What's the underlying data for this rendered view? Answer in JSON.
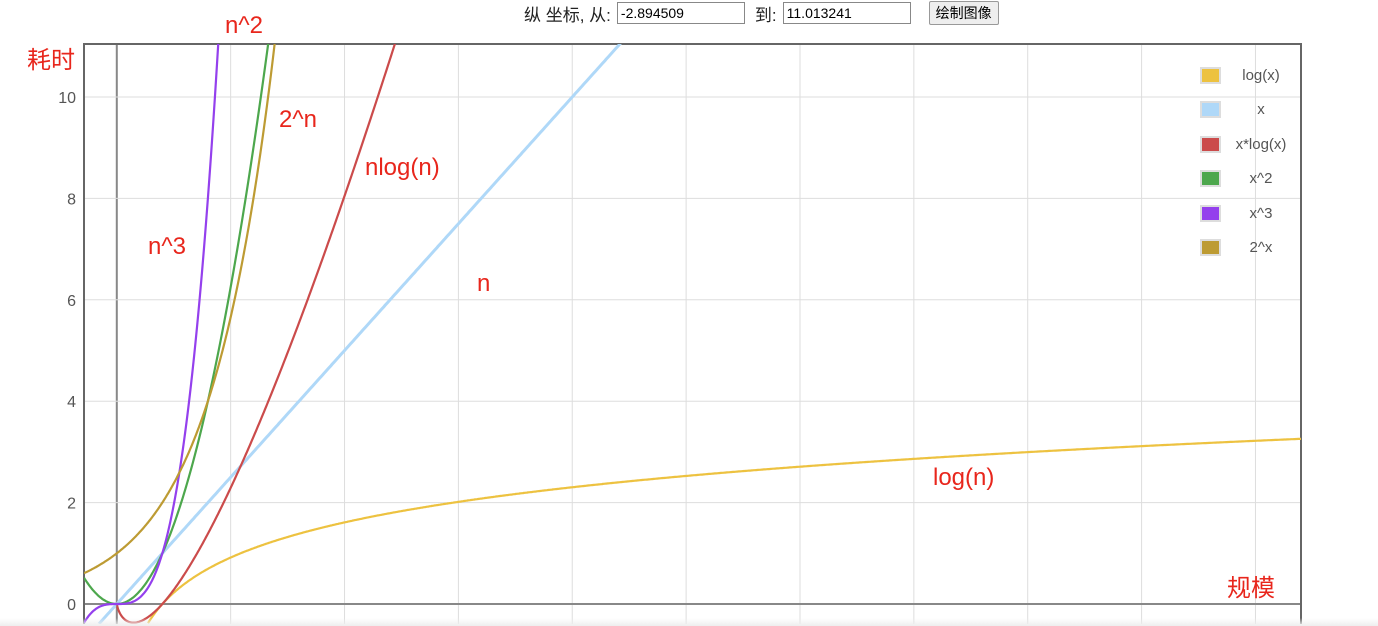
{
  "controls": {
    "label_from": "纵 坐标, 从:",
    "from_value": "-2.894509",
    "label_to": "到:",
    "to_value": "11.013241",
    "draw_button": "绘制图像"
  },
  "annotations": {
    "y_axis": "耗时",
    "x_axis": "规模",
    "n2": "n^2",
    "n3": "n^3",
    "two_n": "2^n",
    "nlogn": "nlog(n)",
    "n": "n",
    "logn": "log(n)"
  },
  "chart_data": {
    "type": "line",
    "xlim": [
      -0.72,
      26.0
    ],
    "ylim": [
      -2.894509,
      11.013241
    ],
    "yticks": [
      0,
      2,
      4,
      6,
      8,
      10
    ],
    "xgrid_step": 2.5,
    "grid": true,
    "legend_placement": "top-right",
    "series": [
      {
        "name": "log(x)",
        "expr": "ln(x)",
        "color": "#edc240"
      },
      {
        "name": "x",
        "expr": "x",
        "color": "#afd8f8"
      },
      {
        "name": "x*log(x)",
        "expr": "x*ln(x)",
        "color": "#cb4b4b"
      },
      {
        "name": "x^2",
        "expr": "x^2",
        "color": "#4da74d"
      },
      {
        "name": "x^3",
        "expr": "x^3",
        "color": "#9440ed"
      },
      {
        "name": "2^x",
        "expr": "2^x",
        "color": "#bd9b33"
      }
    ]
  }
}
